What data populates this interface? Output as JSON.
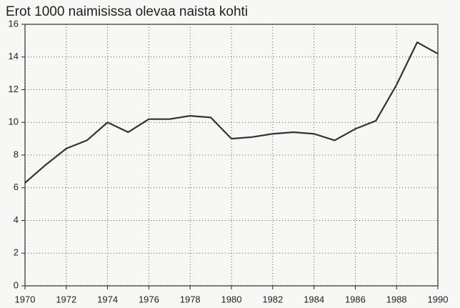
{
  "chart_data": {
    "type": "line",
    "title": "Erot 1000 naimisissa olevaa naista kohti",
    "x": [
      1970,
      1971,
      1972,
      1973,
      1974,
      1975,
      1976,
      1977,
      1978,
      1979,
      1980,
      1981,
      1982,
      1983,
      1984,
      1985,
      1986,
      1987,
      1988,
      1989,
      1990
    ],
    "values": [
      6.3,
      7.4,
      8.4,
      8.9,
      10.0,
      9.4,
      10.2,
      10.2,
      10.4,
      10.3,
      9.0,
      9.1,
      9.3,
      9.4,
      9.3,
      8.9,
      9.6,
      10.1,
      12.3,
      14.9,
      14.2
    ],
    "color": "#333333",
    "xlim": [
      1970,
      1990
    ],
    "xticks": [
      1970,
      1972,
      1974,
      1976,
      1978,
      1980,
      1982,
      1984,
      1986,
      1988,
      1990
    ],
    "ylim": [
      0,
      16
    ],
    "yticks": [
      0,
      2,
      4,
      6,
      8,
      10,
      12,
      14,
      16
    ],
    "grid": true
  }
}
